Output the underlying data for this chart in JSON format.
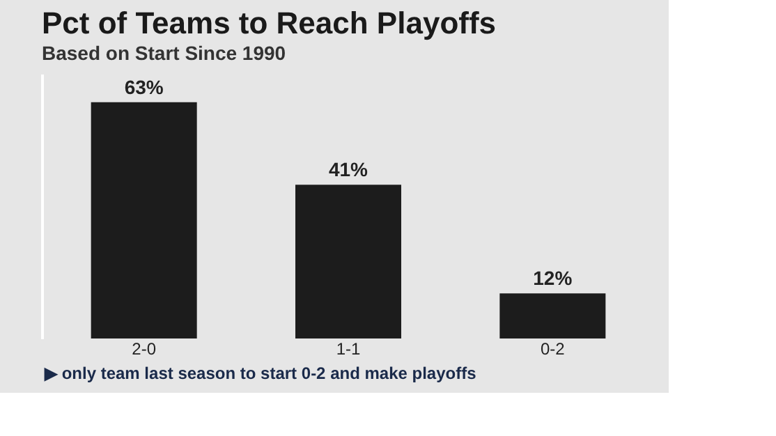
{
  "chart_data": {
    "type": "bar",
    "title": "Pct of Teams to Reach Playoffs",
    "subtitle": "Based on Start Since 1990",
    "categories": [
      "2-0",
      "1-1",
      "0-2"
    ],
    "values": [
      63,
      41,
      12
    ],
    "color": "#1c1c1c",
    "value_labels": [
      "63%",
      "41%",
      "12%"
    ],
    "grid": false,
    "annotations": [
      "▶ only team last season to start 0-2 and make playoffs"
    ]
  }
}
